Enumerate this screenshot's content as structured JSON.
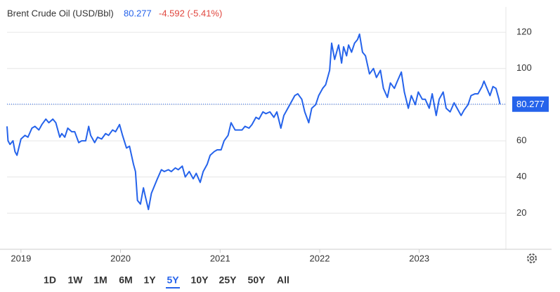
{
  "chart_data": {
    "type": "line",
    "title": "Brent Crude Oil (USD/Bbl)",
    "last": 80.277,
    "change_label": "-4.592 (-5.41%)",
    "color": "#2563eb",
    "grid": true,
    "x": [
      2018.86,
      2018.87,
      2018.89,
      2018.92,
      2018.94,
      2018.96,
      2019.0,
      2019.04,
      2019.07,
      2019.11,
      2019.14,
      2019.18,
      2019.21,
      2019.25,
      2019.28,
      2019.32,
      2019.35,
      2019.39,
      2019.41,
      2019.44,
      2019.47,
      2019.51,
      2019.54,
      2019.58,
      2019.61,
      2019.65,
      2019.68,
      2019.7,
      2019.74,
      2019.77,
      2019.81,
      2019.85,
      2019.88,
      2019.92,
      2019.95,
      2019.99,
      2020.02,
      2020.06,
      2020.09,
      2020.13,
      2020.15,
      2020.17,
      2020.2,
      2020.23,
      2020.25,
      2020.28,
      2020.31,
      2020.34,
      2020.37,
      2020.41,
      2020.44,
      2020.48,
      2020.51,
      2020.55,
      2020.58,
      2020.62,
      2020.65,
      2020.69,
      2020.73,
      2020.76,
      2020.8,
      2020.83,
      2020.87,
      2020.9,
      2020.94,
      2020.97,
      2021.01,
      2021.04,
      2021.08,
      2021.11,
      2021.15,
      2021.18,
      2021.22,
      2021.25,
      2021.29,
      2021.32,
      2021.36,
      2021.39,
      2021.43,
      2021.46,
      2021.5,
      2021.54,
      2021.57,
      2021.61,
      2021.64,
      2021.68,
      2021.71,
      2021.75,
      2021.78,
      2021.82,
      2021.85,
      2021.89,
      2021.92,
      2021.96,
      2021.99,
      2022.03,
      2022.06,
      2022.1,
      2022.12,
      2022.15,
      2022.17,
      2022.19,
      2022.22,
      2022.24,
      2022.27,
      2022.29,
      2022.32,
      2022.35,
      2022.38,
      2022.4,
      2022.43,
      2022.46,
      2022.5,
      2022.54,
      2022.57,
      2022.61,
      2022.64,
      2022.68,
      2022.71,
      2022.75,
      2022.78,
      2022.82,
      2022.85,
      2022.89,
      2022.92,
      2022.96,
      2022.99,
      2023.03,
      2023.06,
      2023.1,
      2023.13,
      2023.17,
      2023.2,
      2023.24,
      2023.27,
      2023.31,
      2023.35,
      2023.38,
      2023.42,
      2023.45,
      2023.49,
      2023.52,
      2023.56,
      2023.59,
      2023.63,
      2023.65,
      2023.68,
      2023.71,
      2023.74,
      2023.77,
      2023.8,
      2023.81
    ],
    "values": [
      68,
      60,
      58,
      60,
      54,
      52,
      61,
      63,
      62,
      67,
      68,
      66,
      69,
      72,
      70,
      72,
      70,
      62,
      64,
      62,
      67,
      65,
      65,
      59,
      60,
      60,
      68,
      63,
      59,
      62,
      61,
      64,
      63,
      66,
      65,
      69,
      63,
      56,
      57,
      47,
      43,
      27,
      25,
      34,
      29,
      22,
      31,
      35,
      39,
      44,
      43,
      44,
      43,
      45,
      44,
      46,
      40,
      43,
      39,
      42,
      37,
      43,
      47,
      52,
      54,
      55,
      55,
      60,
      63,
      70,
      66,
      66,
      66,
      68,
      67,
      69,
      73,
      72,
      76,
      75,
      76,
      73,
      76,
      67,
      74,
      78,
      81,
      85,
      86,
      83,
      76,
      70,
      78,
      80,
      85,
      89,
      91,
      99,
      114,
      105,
      109,
      113,
      103,
      112,
      107,
      113,
      109,
      114,
      116,
      119,
      109,
      107,
      97,
      100,
      95,
      99,
      89,
      84,
      92,
      89,
      93,
      98,
      87,
      78,
      85,
      80,
      87,
      83,
      83,
      78,
      86,
      74,
      83,
      87,
      78,
      76,
      81,
      78,
      74,
      77,
      80,
      85,
      86,
      86,
      90,
      93,
      89,
      85,
      90,
      89,
      83,
      80.277
    ],
    "xlim": [
      2018.86,
      2023.87
    ],
    "xticks": [
      2019,
      2020,
      2021,
      2022,
      2023
    ],
    "ylim": [
      0,
      134
    ],
    "yticks": [
      20,
      40,
      60,
      80,
      100,
      120
    ],
    "ranges": [
      "1D",
      "1W",
      "1M",
      "6M",
      "1Y",
      "5Y",
      "10Y",
      "25Y",
      "50Y",
      "All"
    ],
    "active_range": 5
  }
}
